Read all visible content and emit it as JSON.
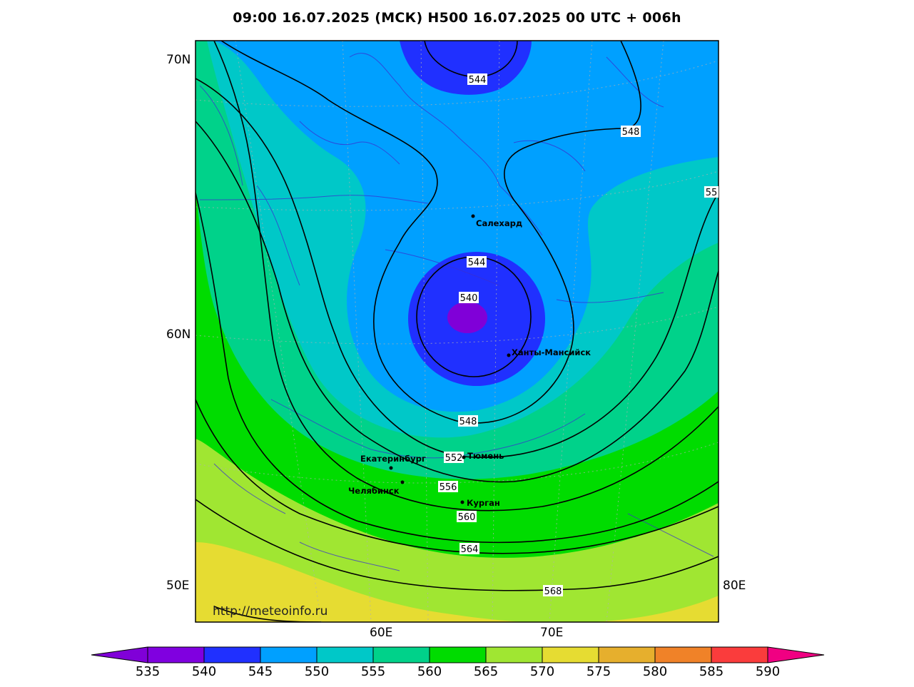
{
  "title": "09:00 16.07.2025 (МСК) H500  16.07.2025 00 UTC + 006h",
  "axes": {
    "lat_labels": [
      "70N",
      "60N",
      "50E"
    ],
    "lon_labels": [
      "60E",
      "70E",
      "80E"
    ]
  },
  "watermark": "http://meteoinfo.ru",
  "cities": [
    {
      "name": "Салехард"
    },
    {
      "name": "Ханты-Мансийск"
    },
    {
      "name": "Екатеринбург"
    },
    {
      "name": "Тюмень"
    },
    {
      "name": "Челябинск"
    },
    {
      "name": "Курган"
    }
  ],
  "contour_labels": [
    "544",
    "548",
    "55",
    "544",
    "540",
    "548",
    "552",
    "556",
    "560",
    "564",
    "568"
  ],
  "colorbar": {
    "ticks": [
      "535",
      "540",
      "545",
      "550",
      "555",
      "560",
      "565",
      "570",
      "575",
      "580",
      "585",
      "590"
    ],
    "colors": [
      "#8000d8",
      "#8000e0",
      "#2030ff",
      "#00a0ff",
      "#00c8c8",
      "#00d28a",
      "#00dc00",
      "#a0e632",
      "#e6dc32",
      "#e6af2d",
      "#f08228",
      "#fa3c3c",
      "#f00082"
    ]
  }
}
